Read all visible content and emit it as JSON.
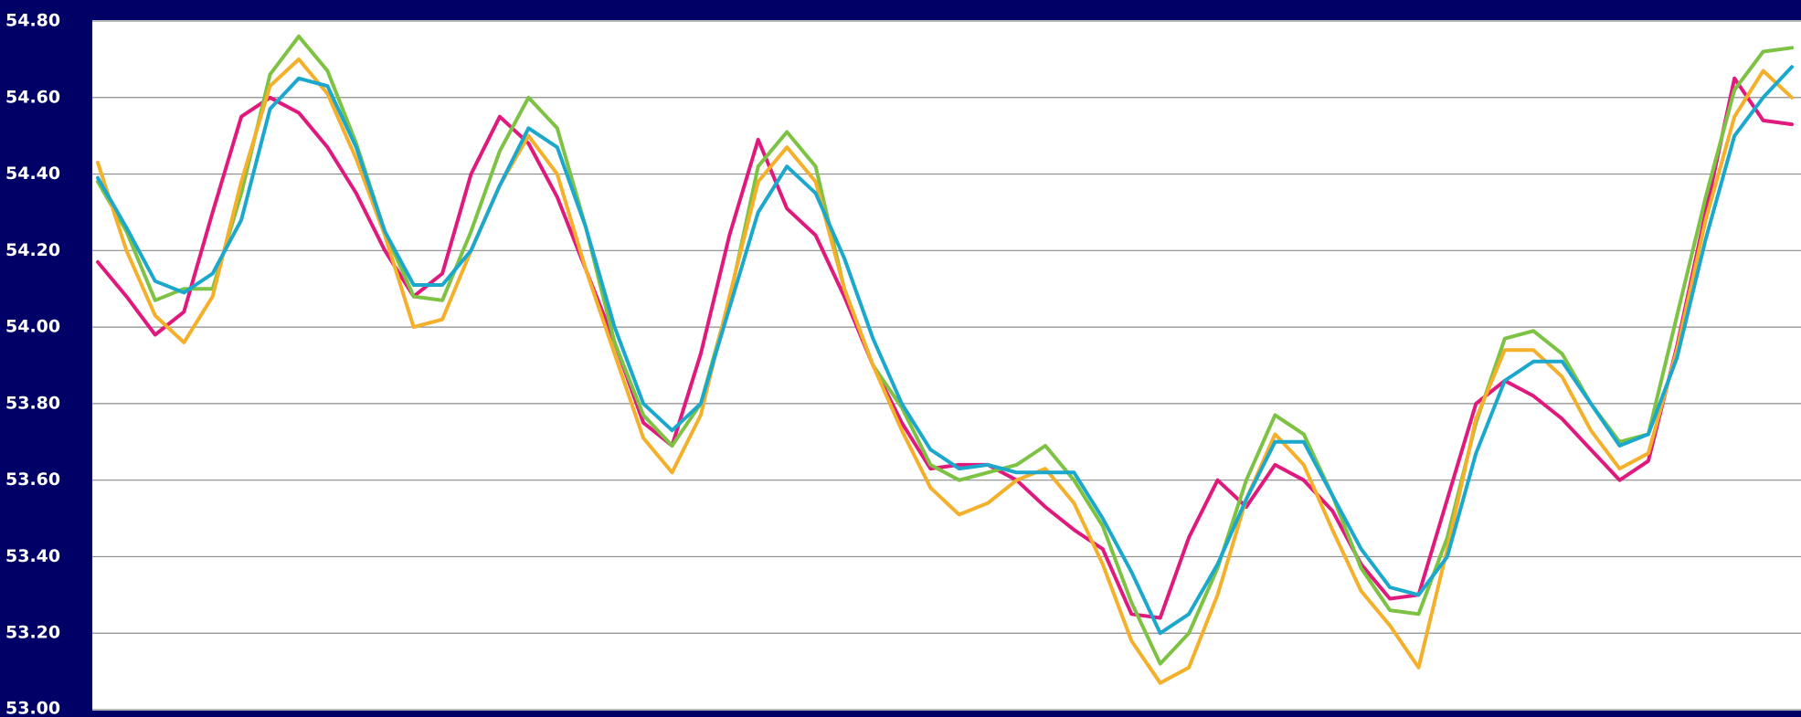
{
  "chart_data": {
    "type": "line",
    "categories": [
      null,
      null,
      null,
      null,
      null,
      null,
      null,
      null,
      null,
      null,
      null,
      null,
      null,
      null,
      null,
      null,
      null,
      null,
      null,
      null,
      null,
      null,
      null,
      null,
      null,
      null,
      null,
      null,
      null,
      null,
      null,
      null,
      null,
      null,
      null,
      null,
      null,
      null,
      null,
      null,
      null,
      null,
      null,
      null,
      null,
      null,
      null,
      null,
      null,
      null,
      null,
      null,
      null,
      null,
      null,
      null,
      null,
      null,
      null,
      null
    ],
    "ylim": [
      53.0,
      54.8
    ],
    "yticks": [
      {
        "value": 53.0,
        "label": "53.00"
      },
      {
        "value": 53.2,
        "label": "53.20"
      },
      {
        "value": 53.4,
        "label": "53.40"
      },
      {
        "value": 53.6,
        "label": "53.60"
      },
      {
        "value": 53.8,
        "label": "53.80"
      },
      {
        "value": 54.0,
        "label": "54.00"
      },
      {
        "value": 54.2,
        "label": "54.20"
      },
      {
        "value": 54.4,
        "label": "54.40"
      },
      {
        "value": 54.6,
        "label": "54.60"
      },
      {
        "value": 54.8,
        "label": "54.80"
      }
    ],
    "grid": true,
    "series": [
      {
        "color": "#e0197d",
        "values": [
          54.17,
          54.08,
          53.98,
          54.04,
          54.3,
          54.55,
          54.6,
          54.56,
          54.47,
          54.35,
          54.2,
          54.08,
          54.14,
          54.4,
          54.55,
          54.48,
          54.34,
          54.15,
          53.96,
          53.75,
          53.69,
          53.93,
          54.24,
          54.49,
          54.31,
          54.24,
          54.08,
          53.9,
          53.75,
          53.63,
          53.64,
          53.64,
          53.6,
          53.53,
          53.47,
          53.42,
          53.25,
          53.24,
          53.45,
          53.6,
          53.53,
          53.64,
          53.6,
          53.52,
          53.38,
          53.29,
          53.3,
          53.55,
          53.8,
          53.86,
          53.82,
          53.76,
          53.68,
          53.6,
          53.65,
          53.95,
          54.3,
          54.65,
          54.54,
          54.53
        ]
      },
      {
        "color": "#7dc242",
        "values": [
          54.38,
          54.25,
          54.07,
          54.1,
          54.1,
          54.35,
          54.66,
          54.76,
          54.67,
          54.48,
          54.25,
          54.08,
          54.07,
          54.25,
          54.46,
          54.6,
          54.52,
          54.26,
          53.96,
          53.77,
          53.69,
          53.8,
          54.07,
          54.42,
          54.51,
          54.42,
          54.1,
          53.9,
          53.79,
          53.64,
          53.6,
          53.62,
          53.64,
          53.69,
          53.6,
          53.48,
          53.28,
          53.12,
          53.2,
          53.37,
          53.6,
          53.77,
          53.72,
          53.56,
          53.37,
          53.26,
          53.25,
          53.45,
          53.75,
          53.97,
          53.99,
          53.93,
          53.8,
          53.7,
          53.72,
          54.03,
          54.34,
          54.62,
          54.72,
          54.73
        ]
      },
      {
        "color": "#f4b02a",
        "values": [
          54.43,
          54.2,
          54.03,
          53.96,
          54.08,
          54.38,
          54.63,
          54.7,
          54.61,
          54.44,
          54.24,
          54.0,
          54.02,
          54.2,
          54.37,
          54.5,
          54.4,
          54.15,
          53.93,
          53.71,
          53.62,
          53.77,
          54.08,
          54.38,
          54.47,
          54.38,
          54.1,
          53.9,
          53.73,
          53.58,
          53.51,
          53.54,
          53.6,
          53.63,
          53.54,
          53.38,
          53.18,
          53.07,
          53.11,
          53.3,
          53.55,
          53.72,
          53.64,
          53.47,
          53.31,
          53.22,
          53.11,
          53.42,
          53.76,
          53.94,
          53.94,
          53.87,
          53.73,
          53.63,
          53.67,
          53.94,
          54.28,
          54.55,
          54.67,
          54.6
        ]
      },
      {
        "color": "#1ba8cc",
        "values": [
          54.39,
          54.26,
          54.12,
          54.09,
          54.14,
          54.28,
          54.57,
          54.65,
          54.63,
          54.47,
          54.25,
          54.11,
          54.11,
          54.2,
          54.37,
          54.52,
          54.47,
          54.26,
          54.0,
          53.8,
          53.73,
          53.8,
          54.05,
          54.3,
          54.42,
          54.35,
          54.18,
          53.97,
          53.8,
          53.68,
          53.63,
          53.64,
          53.62,
          53.62,
          53.62,
          53.5,
          53.36,
          53.2,
          53.25,
          53.38,
          53.55,
          53.7,
          53.7,
          53.56,
          53.42,
          53.32,
          53.3,
          53.4,
          53.67,
          53.86,
          53.91,
          53.91,
          53.8,
          53.69,
          53.72,
          53.92,
          54.23,
          54.5,
          54.6,
          54.68
        ]
      }
    ]
  }
}
